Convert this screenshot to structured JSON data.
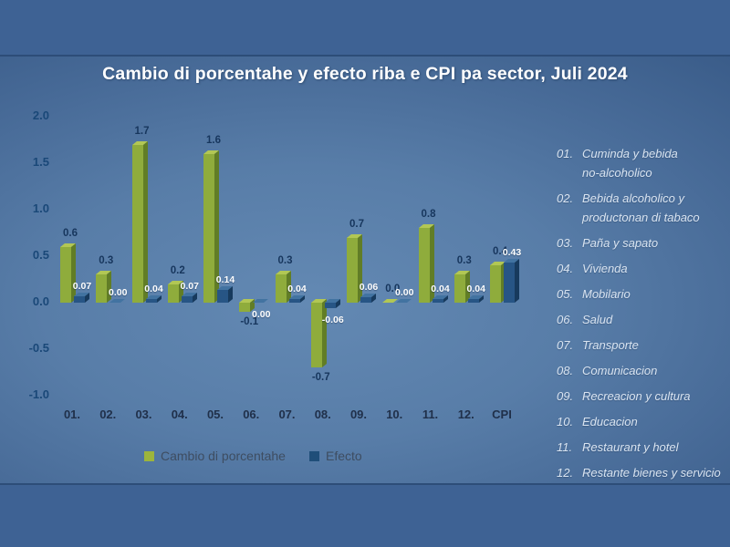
{
  "title": "Cambio di porcentahe y efecto riba e CPI pa sector, Juli 2024",
  "chart_data": {
    "type": "bar",
    "title": "Cambio di porcentahe y efecto riba e CPI pa sector, Juli 2024",
    "categories": [
      "01.",
      "02.",
      "03.",
      "04.",
      "05.",
      "06.",
      "07.",
      "08.",
      "09.",
      "10.",
      "11.",
      "12.",
      "CPI"
    ],
    "series": [
      {
        "name": "Cambio di porcentahe",
        "values": [
          0.6,
          0.3,
          1.7,
          0.2,
          1.6,
          -0.1,
          0.3,
          -0.7,
          0.7,
          0.0,
          0.8,
          0.3,
          0.4
        ],
        "labels": [
          "0.6",
          "0.3",
          "1.7",
          "0.2",
          "1.6",
          "-0.1",
          "0.3",
          "-0.7",
          "0.7",
          "0.0",
          "0.8",
          "0.3",
          "0.4"
        ],
        "color": "#8fac3c",
        "color_side": "#617d26",
        "color_top": "#b2c754",
        "label_color": "#17365d"
      },
      {
        "name": "Efecto",
        "values": [
          0.07,
          0.0,
          0.04,
          0.07,
          0.14,
          0.0,
          0.04,
          -0.06,
          0.06,
          0.0,
          0.04,
          0.04,
          0.43
        ],
        "labels": [
          "0.07",
          "0.00",
          "0.04",
          "0.07",
          "0.14",
          "0.00",
          "0.04",
          "-0.06",
          "0.06",
          "0.00",
          "0.04",
          "0.04",
          "0.43"
        ],
        "color": "#275585",
        "color_side": "#173a5d",
        "color_top": "#4273a1",
        "label_color": "#ffffff"
      }
    ],
    "ylim": [
      -1.0,
      2.0
    ],
    "yticks": [
      "2.0",
      "1.5",
      "1.0",
      "0.5",
      "0.0",
      "-0.5",
      "-1.0"
    ],
    "grid": false,
    "legend_position": "bottom"
  },
  "legend": {
    "items": [
      {
        "label": "Cambio di porcentahe",
        "color": "#9db53c"
      },
      {
        "label": "Efecto",
        "color": "#1f4e79"
      }
    ]
  },
  "sectors": {
    "items": [
      {
        "num": "01.",
        "lines": [
          "Cuminda y bebida",
          "no-alcoholico"
        ]
      },
      {
        "num": "02.",
        "lines": [
          "Bebida alcoholico y",
          "productonan di tabaco"
        ]
      },
      {
        "num": "03.",
        "lines": [
          "Paña y sapato"
        ]
      },
      {
        "num": "04.",
        "lines": [
          "Vivienda"
        ]
      },
      {
        "num": "05.",
        "lines": [
          "Mobilario"
        ]
      },
      {
        "num": "06.",
        "lines": [
          "Salud"
        ]
      },
      {
        "num": "07.",
        "lines": [
          "Transporte"
        ]
      },
      {
        "num": "08.",
        "lines": [
          "Comunicacion"
        ]
      },
      {
        "num": "09.",
        "lines": [
          "Recreacion y cultura"
        ]
      },
      {
        "num": "10.",
        "lines": [
          "Educacion"
        ]
      },
      {
        "num": "11.",
        "lines": [
          "Restaurant y hotel"
        ]
      },
      {
        "num": "12.",
        "lines": [
          "Restante bienes y servicio"
        ]
      }
    ]
  }
}
